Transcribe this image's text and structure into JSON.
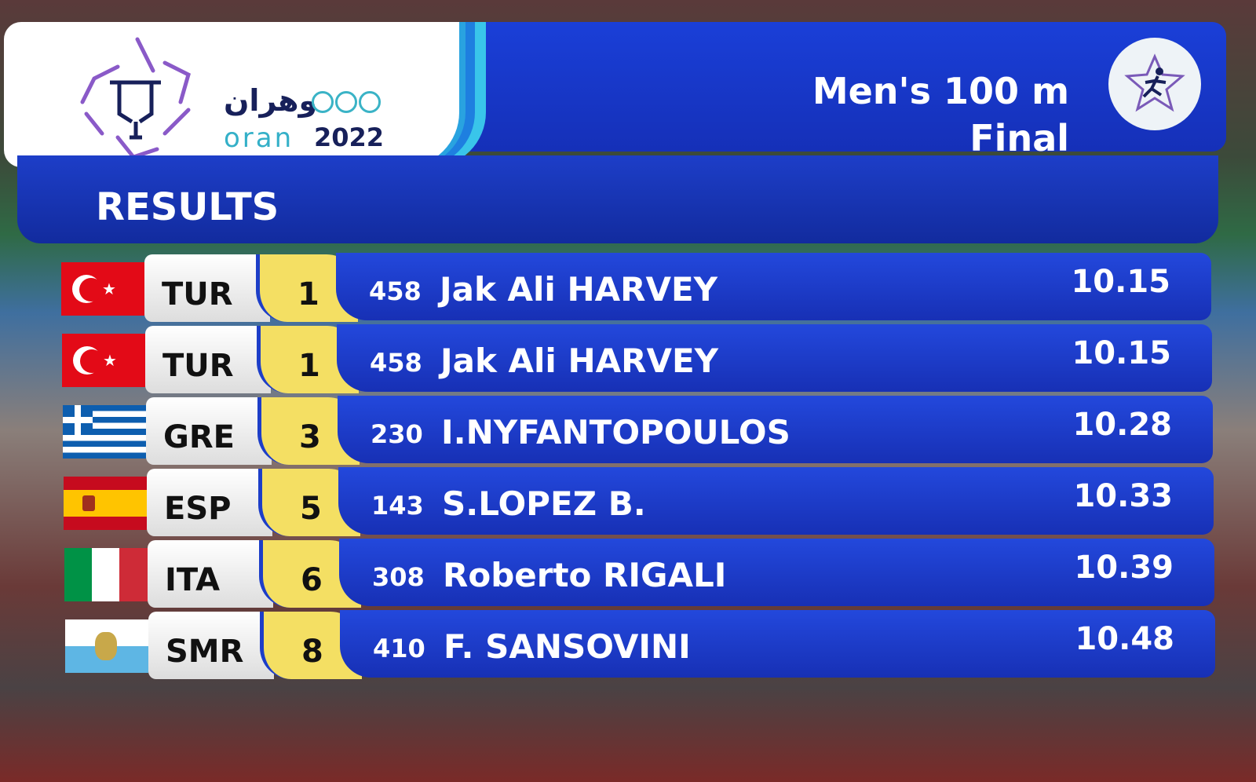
{
  "logo": {
    "arabic": "وهران",
    "city": "oran",
    "year": "2022"
  },
  "event": {
    "title": "Men's 100 m",
    "phase": "Final",
    "emblem_icon": "running-athlete-icon"
  },
  "section": "RESULTS",
  "colors": {
    "banner": "#1a3fd8",
    "rank": "#f4df63"
  },
  "results": [
    {
      "flag": "turkey",
      "country": "TUR",
      "rank": "1",
      "bib": "458",
      "name": "Jak Ali HARVEY",
      "time": "10.15"
    },
    {
      "flag": "turkey",
      "country": "TUR",
      "rank": "1",
      "bib": "458",
      "name": "Jak Ali HARVEY",
      "time": "10.15"
    },
    {
      "flag": "greece",
      "country": "GRE",
      "rank": "3",
      "bib": "230",
      "name": "I.NYFANTOPOULOS",
      "time": "10.28"
    },
    {
      "flag": "spain",
      "country": "ESP",
      "rank": "5",
      "bib": "143",
      "name": "S.LOPEZ B.",
      "time": "10.33"
    },
    {
      "flag": "italy",
      "country": "ITA",
      "rank": "6",
      "bib": "308",
      "name": "Roberto RIGALI",
      "time": "10.39"
    },
    {
      "flag": "san-marino",
      "country": "SMR",
      "rank": "8",
      "bib": "410",
      "name": "F. SANSOVINI",
      "time": "10.48"
    }
  ]
}
